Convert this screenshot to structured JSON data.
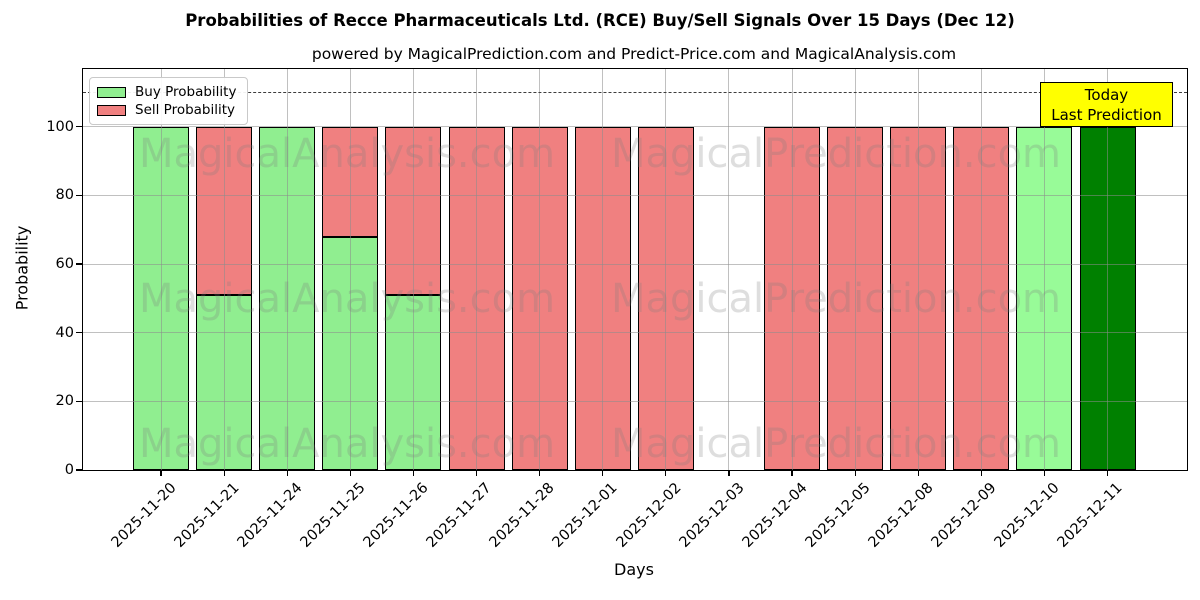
{
  "chart_data": {
    "type": "bar",
    "stacked": true,
    "title": "Probabilities of Recce Pharmaceuticals Ltd. (RCE) Buy/Sell Signals Over 15 Days (Dec 12)",
    "subtitle": "powered by MagicalPrediction.com and Predict-Price.com and MagicalAnalysis.com",
    "xlabel": "Days",
    "ylabel": "Probability",
    "ylim": [
      0,
      116.8
    ],
    "yticks": [
      0,
      20,
      40,
      60,
      80,
      100
    ],
    "grid": true,
    "dashed_reference_line_y": 110,
    "categories": [
      "2025-11-20",
      "2025-11-21",
      "2025-11-24",
      "2025-11-25",
      "2025-11-26",
      "2025-11-27",
      "2025-11-28",
      "2025-12-01",
      "2025-12-02",
      "2025-12-03",
      "2025-12-04",
      "2025-12-05",
      "2025-12-08",
      "2025-12-09",
      "2025-12-10",
      "2025-12-11"
    ],
    "series": [
      {
        "name": "Buy Probability",
        "color": "#90EE90",
        "values": [
          100,
          51,
          100,
          68,
          51,
          0,
          0,
          0,
          0,
          0,
          0,
          0,
          0,
          0,
          100,
          100
        ]
      },
      {
        "name": "Sell Probability",
        "color": "#F08080",
        "values": [
          0,
          49,
          0,
          32,
          49,
          100,
          100,
          100,
          100,
          0,
          100,
          100,
          100,
          100,
          0,
          0
        ]
      }
    ],
    "bar_color_overrides": [
      {
        "index": 14,
        "series": 0,
        "color": "#98FB98"
      },
      {
        "index": 15,
        "series": 0,
        "color": "#008000"
      }
    ],
    "legend_position": "upper left",
    "annotation": {
      "lines": [
        "Today",
        "Last Prediction"
      ],
      "bg": "#FFFF00"
    },
    "watermarks": [
      "MagicalAnalysis.com",
      "MagicalPrediction.com"
    ]
  }
}
